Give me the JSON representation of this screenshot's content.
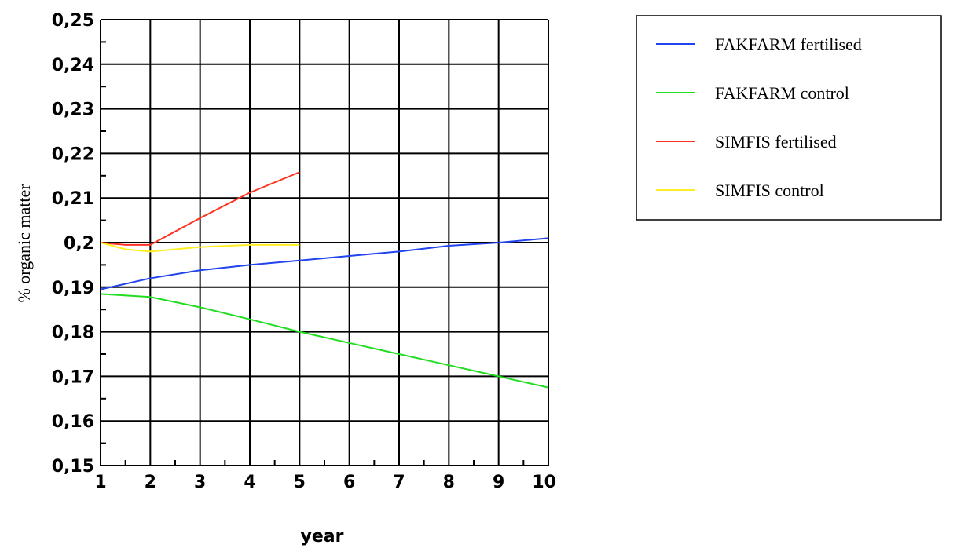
{
  "chart_data": {
    "type": "line",
    "title": "",
    "xlabel": "year",
    "ylabel": "% organic matter",
    "xlim": [
      1,
      10
    ],
    "ylim": [
      0.15,
      0.25
    ],
    "x_ticks": [
      "1",
      "2",
      "3",
      "4",
      "5",
      "6",
      "7",
      "8",
      "9",
      "10"
    ],
    "y_ticks": [
      "0,15",
      "0,16",
      "0,17",
      "0,18",
      "0,19",
      "0,2",
      "0,21",
      "0,22",
      "0,23",
      "0,24",
      "0,25"
    ],
    "grid": true,
    "legend_position": "right",
    "series": [
      {
        "name": "FAKFARM fertilised",
        "color": "#2244ee",
        "x": [
          1,
          2,
          3,
          4,
          5,
          6,
          7,
          8,
          9,
          10
        ],
        "y": [
          0.1895,
          0.192,
          0.1938,
          0.195,
          0.196,
          0.197,
          0.198,
          0.1993,
          0.2,
          0.201
        ]
      },
      {
        "name": "FAKFARM control",
        "color": "#22dd22",
        "x": [
          1,
          2,
          3,
          4,
          5,
          6,
          7,
          8,
          9,
          10
        ],
        "y": [
          0.1885,
          0.1878,
          0.1855,
          0.1828,
          0.18,
          0.1775,
          0.175,
          0.1725,
          0.17,
          0.1675
        ]
      },
      {
        "name": "SIMFIS fertilised",
        "color": "#ff3322",
        "x": [
          1,
          1.5,
          2,
          3,
          4,
          5
        ],
        "y": [
          0.2,
          0.1995,
          0.1995,
          0.2055,
          0.2112,
          0.2158
        ]
      },
      {
        "name": "SIMFIS control",
        "color": "#ffee22",
        "x": [
          1,
          1.5,
          2,
          3,
          4,
          5
        ],
        "y": [
          0.2,
          0.1985,
          0.198,
          0.199,
          0.1995,
          0.1995
        ]
      }
    ]
  }
}
